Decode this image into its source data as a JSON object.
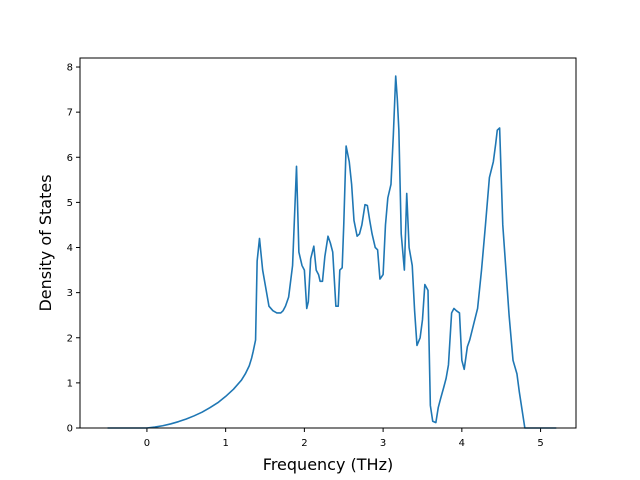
{
  "chart_data": {
    "type": "line",
    "title": "",
    "xlabel": "Frequency (THz)",
    "ylabel": "Density of States",
    "xlim": [
      -0.85,
      5.45
    ],
    "ylim": [
      0,
      8.2
    ],
    "xticks": [
      0,
      1,
      2,
      3,
      4,
      5
    ],
    "yticks": [
      0,
      1,
      2,
      3,
      4,
      5,
      6,
      7,
      8
    ],
    "grid": false,
    "legend": "none",
    "series": [
      {
        "color": "#1f77b4",
        "x": [
          -0.5,
          -0.3,
          -0.1,
          0.0,
          0.1,
          0.2,
          0.3,
          0.4,
          0.5,
          0.6,
          0.7,
          0.8,
          0.9,
          1.0,
          1.1,
          1.2,
          1.25,
          1.3,
          1.33,
          1.35,
          1.38,
          1.4,
          1.43,
          1.47,
          1.5,
          1.55,
          1.6,
          1.65,
          1.7,
          1.73,
          1.76,
          1.78,
          1.8,
          1.85,
          1.9,
          1.93,
          1.95,
          1.97,
          2.0,
          2.03,
          2.05,
          2.08,
          2.12,
          2.15,
          2.18,
          2.2,
          2.23,
          2.26,
          2.3,
          2.33,
          2.36,
          2.4,
          2.43,
          2.45,
          2.48,
          2.5,
          2.53,
          2.57,
          2.6,
          2.63,
          2.67,
          2.7,
          2.73,
          2.77,
          2.8,
          2.83,
          2.86,
          2.9,
          2.93,
          2.96,
          3.0,
          3.03,
          3.06,
          3.1,
          3.13,
          3.16,
          3.18,
          3.2,
          3.23,
          3.27,
          3.3,
          3.33,
          3.37,
          3.4,
          3.43,
          3.47,
          3.5,
          3.53,
          3.57,
          3.6,
          3.63,
          3.67,
          3.7,
          3.73,
          3.77,
          3.8,
          3.83,
          3.87,
          3.9,
          3.93,
          3.97,
          4.0,
          4.03,
          4.07,
          4.1,
          4.15,
          4.2,
          4.25,
          4.3,
          4.35,
          4.4,
          4.43,
          4.45,
          4.48,
          4.52,
          4.56,
          4.6,
          4.65,
          4.7,
          4.73,
          4.8,
          5.0,
          5.2
        ],
        "values": [
          0.0,
          0.0,
          0.0,
          0.0,
          0.02,
          0.05,
          0.09,
          0.14,
          0.2,
          0.27,
          0.35,
          0.45,
          0.56,
          0.7,
          0.86,
          1.06,
          1.2,
          1.38,
          1.55,
          1.7,
          1.95,
          3.7,
          4.2,
          3.5,
          3.2,
          2.7,
          2.6,
          2.55,
          2.55,
          2.6,
          2.7,
          2.8,
          2.9,
          3.6,
          5.8,
          3.9,
          3.75,
          3.6,
          3.5,
          2.65,
          2.8,
          3.75,
          4.03,
          3.5,
          3.4,
          3.25,
          3.25,
          3.8,
          4.25,
          4.1,
          3.9,
          2.7,
          2.7,
          3.5,
          3.55,
          4.5,
          6.25,
          5.9,
          5.4,
          4.6,
          4.25,
          4.3,
          4.5,
          4.95,
          4.93,
          4.6,
          4.3,
          4.0,
          3.95,
          3.3,
          3.4,
          4.5,
          5.1,
          5.4,
          6.5,
          7.8,
          7.3,
          6.6,
          4.3,
          3.5,
          5.2,
          4.0,
          3.6,
          2.6,
          1.83,
          2.0,
          2.4,
          3.18,
          3.05,
          0.5,
          0.15,
          0.12,
          0.45,
          0.65,
          0.9,
          1.1,
          1.4,
          2.55,
          2.65,
          2.6,
          2.55,
          1.5,
          1.3,
          1.8,
          1.95,
          2.3,
          2.65,
          3.5,
          4.5,
          5.55,
          5.9,
          6.3,
          6.6,
          6.65,
          4.5,
          3.5,
          2.5,
          1.5,
          1.2,
          0.8,
          0.0,
          0.0,
          0.0
        ]
      }
    ]
  }
}
